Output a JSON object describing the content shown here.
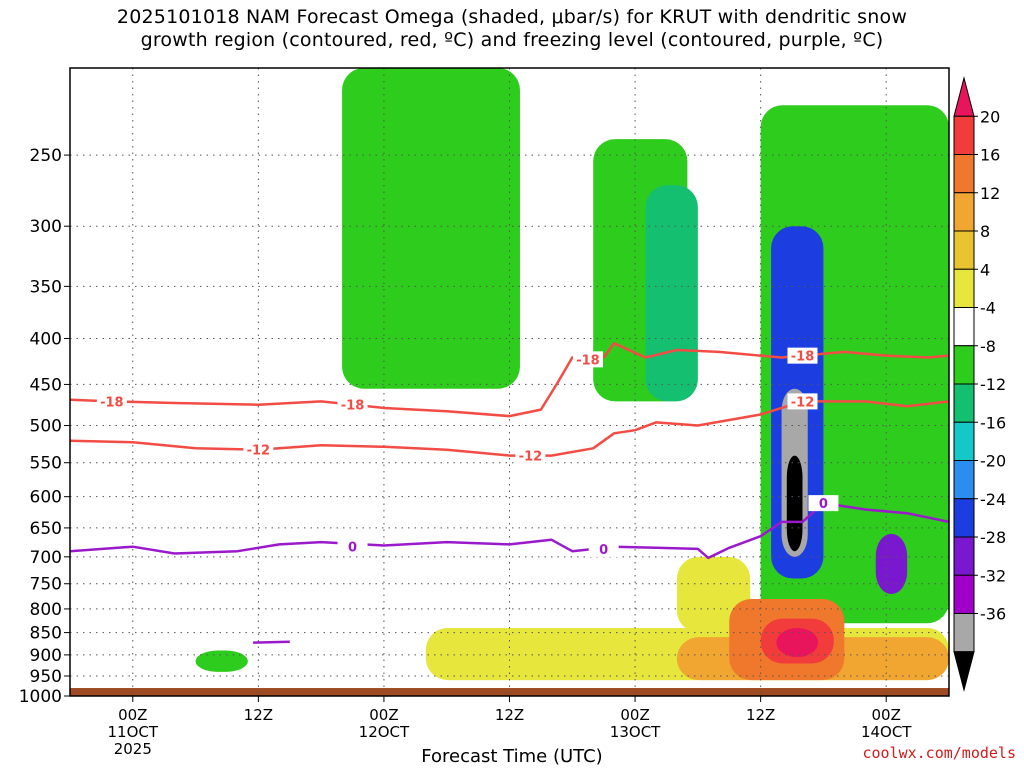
{
  "title": {
    "line1": "2025101018 NAM Forecast Omega (shaded, μbar/s) for KRUT with dendritic snow",
    "line2": "growth region (contoured, red, ºC) and freezing level (contoured, purple, ºC)"
  },
  "credit": "coolwx.com/models",
  "chart_data": {
    "type": "heatmap",
    "xlabel": "Forecast Time (UTC)",
    "ylabel": "",
    "x_ticks": [
      {
        "line1": "00Z",
        "line2": "11OCT",
        "line3": "2025",
        "hour": 6
      },
      {
        "line1": "12Z",
        "line2": "",
        "line3": "",
        "hour": 18
      },
      {
        "line1": "00Z",
        "line2": "12OCT",
        "line3": "",
        "hour": 30
      },
      {
        "line1": "12Z",
        "line2": "",
        "line3": "",
        "hour": 42
      },
      {
        "line1": "00Z",
        "line2": "13OCT",
        "line3": "",
        "hour": 54
      },
      {
        "line1": "12Z",
        "line2": "",
        "line3": "",
        "hour": 66
      },
      {
        "line1": "00Z",
        "line2": "14OCT",
        "line3": "",
        "hour": 78
      }
    ],
    "xlim_hours": [
      0,
      84
    ],
    "y_ticks": [
      "250",
      "300",
      "350",
      "400",
      "450",
      "500",
      "550",
      "600",
      "650",
      "700",
      "750",
      "800",
      "850",
      "900",
      "950",
      "1000"
    ],
    "ylim_hpa": [
      1000,
      200
    ],
    "y_scale": "log-pressure",
    "grid": "dotted",
    "colorbar": {
      "levels": [
        "20",
        "16",
        "12",
        "8",
        "4",
        "-4",
        "-8",
        "-12",
        "-16",
        "-20",
        "-24",
        "-28",
        "-32",
        "-36"
      ],
      "colors": [
        "#e8155c",
        "#f23c3c",
        "#f0782c",
        "#f0a630",
        "#e8c430",
        "#e6e63c",
        "#ffffff",
        "#2ecc1c",
        "#14c070",
        "#14c8c8",
        "#2a8ef0",
        "#1c3ee0",
        "#7a18d0",
        "#a000c8",
        "#a8a8a8",
        "#000000"
      ]
    },
    "series": [
      {
        "kind": "contour",
        "color": "#f24c45",
        "label": "-18",
        "points": [
          [
            0,
            468
          ],
          [
            4,
            470
          ],
          [
            10,
            472
          ],
          [
            18,
            474
          ],
          [
            24,
            470
          ],
          [
            30,
            478
          ],
          [
            36,
            482
          ],
          [
            42,
            488
          ],
          [
            45,
            480
          ],
          [
            46.5,
            450
          ],
          [
            48,
            420
          ],
          [
            51,
            420
          ],
          [
            52,
            405
          ],
          [
            55,
            420
          ],
          [
            58,
            412
          ],
          [
            62,
            414
          ],
          [
            68,
            420
          ],
          [
            74,
            414
          ],
          [
            78,
            418
          ],
          [
            82,
            420
          ],
          [
            84,
            418
          ]
        ],
        "label_positions": [
          [
            4,
            470
          ],
          [
            27,
            474
          ],
          [
            49.5,
            422
          ],
          [
            70,
            418
          ]
        ]
      },
      {
        "kind": "contour",
        "color": "#f24c45",
        "label": "-12",
        "points": [
          [
            0,
            520
          ],
          [
            6,
            522
          ],
          [
            12,
            530
          ],
          [
            18,
            532
          ],
          [
            24,
            526
          ],
          [
            30,
            528
          ],
          [
            36,
            532
          ],
          [
            42,
            540
          ],
          [
            46,
            540
          ],
          [
            50,
            530
          ],
          [
            52,
            510
          ],
          [
            54,
            506
          ],
          [
            56,
            496
          ],
          [
            60,
            500
          ],
          [
            66,
            486
          ],
          [
            70,
            470
          ],
          [
            72,
            470
          ],
          [
            76,
            470
          ],
          [
            80,
            476
          ],
          [
            84,
            470
          ]
        ],
        "label_positions": [
          [
            18,
            532
          ],
          [
            44,
            540
          ],
          [
            70,
            470
          ]
        ]
      },
      {
        "kind": "contour",
        "color": "#9a1acb",
        "label": "0",
        "points": [
          [
            0,
            690
          ],
          [
            6,
            682
          ],
          [
            10,
            694
          ],
          [
            16,
            690
          ],
          [
            20,
            678
          ],
          [
            24,
            674
          ],
          [
            30,
            680
          ],
          [
            36,
            674
          ],
          [
            42,
            678
          ],
          [
            46,
            670
          ],
          [
            48,
            690
          ],
          [
            52,
            682
          ],
          [
            56,
            684
          ],
          [
            60,
            686
          ],
          [
            61,
            702
          ],
          [
            63,
            684
          ],
          [
            66,
            664
          ],
          [
            68,
            640
          ],
          [
            70,
            640
          ],
          [
            72,
            610
          ],
          [
            76,
            620
          ],
          [
            80,
            626
          ],
          [
            84,
            640
          ]
        ],
        "label_positions": [
          [
            27,
            682
          ],
          [
            51,
            686
          ],
          [
            72,
            610
          ]
        ]
      },
      {
        "kind": "contour",
        "color": "#9a1acb",
        "label": "",
        "points": [
          [
            17.5,
            872
          ],
          [
            21,
            870
          ]
        ],
        "label_positions": []
      }
    ],
    "shaded_regions": [
      {
        "level": "-8",
        "color": "#2ecc1c",
        "hour_range": [
          26,
          43
        ],
        "hpa_range": [
          200,
          455
        ]
      },
      {
        "level": "-8",
        "color": "#2ecc1c",
        "hour_range": [
          50,
          59
        ],
        "hpa_range": [
          240,
          470
        ]
      },
      {
        "level": "-8",
        "color": "#2ecc1c",
        "hour_range": [
          66,
          84
        ],
        "hpa_range": [
          220,
          830
        ]
      },
      {
        "level": "-8",
        "color": "#2ecc1c",
        "hour_range": [
          12,
          17
        ],
        "hpa_range": [
          890,
          940
        ]
      },
      {
        "level": "-12",
        "color": "#14c070",
        "hour_range": [
          55,
          60
        ],
        "hpa_range": [
          270,
          470
        ]
      },
      {
        "level": "-24",
        "color": "#1c3ee0",
        "hour_range": [
          67,
          72
        ],
        "hpa_range": [
          300,
          740
        ]
      },
      {
        "level": "-32",
        "color": "#a8a8a8",
        "hour_range": [
          68,
          70.5
        ],
        "hpa_range": [
          455,
          700
        ]
      },
      {
        "level": "-36",
        "color": "#000000",
        "hour_range": [
          68.5,
          70
        ],
        "hpa_range": [
          540,
          690
        ]
      },
      {
        "level": "-28",
        "color": "#7a18d0",
        "hour_range": [
          77,
          80
        ],
        "hpa_range": [
          660,
          770
        ]
      },
      {
        "level": "4",
        "color": "#e6e63c",
        "hour_range": [
          34,
          84
        ],
        "hpa_range": [
          840,
          960
        ]
      },
      {
        "level": "4",
        "color": "#e6e63c",
        "hour_range": [
          58,
          65
        ],
        "hpa_range": [
          700,
          850
        ]
      },
      {
        "level": "8",
        "color": "#f0a630",
        "hour_range": [
          58,
          84
        ],
        "hpa_range": [
          860,
          960
        ]
      },
      {
        "level": "12",
        "color": "#f0782c",
        "hour_range": [
          63,
          74
        ],
        "hpa_range": [
          780,
          960
        ]
      },
      {
        "level": "16",
        "color": "#f23c3c",
        "hour_range": [
          66,
          73
        ],
        "hpa_range": [
          820,
          920
        ]
      },
      {
        "level": "20",
        "color": "#e8155c",
        "hour_range": [
          67.5,
          71.5
        ],
        "hpa_range": [
          840,
          905
        ]
      }
    ],
    "surface_color": "#9e4a22"
  }
}
